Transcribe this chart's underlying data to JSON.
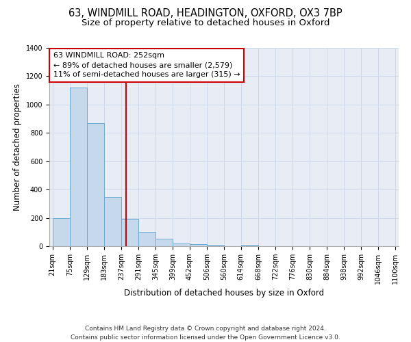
{
  "title_line1": "63, WINDMILL ROAD, HEADINGTON, OXFORD, OX3 7BP",
  "title_line2": "Size of property relative to detached houses in Oxford",
  "xlabel": "Distribution of detached houses by size in Oxford",
  "ylabel": "Number of detached properties",
  "bar_lefts": [
    21,
    75,
    129,
    183,
    237,
    291,
    345,
    399,
    452,
    506,
    560,
    614,
    668,
    722,
    776,
    830,
    884,
    938,
    992,
    1046
  ],
  "bar_rights": [
    75,
    129,
    183,
    237,
    291,
    345,
    399,
    452,
    506,
    560,
    614,
    668,
    722,
    776,
    830,
    884,
    938,
    992,
    1046,
    1100
  ],
  "bar_heights": [
    200,
    1120,
    870,
    350,
    195,
    100,
    55,
    20,
    15,
    10,
    0,
    10,
    0,
    0,
    0,
    0,
    0,
    0,
    0,
    0
  ],
  "bar_color": "#c5d8ec",
  "bar_edge_color": "#6aaad4",
  "red_line_x": 252,
  "annotation_text_line1": "63 WINDMILL ROAD: 252sqm",
  "annotation_text_line2": "← 89% of detached houses are smaller (2,579)",
  "annotation_text_line3": "11% of semi-detached houses are larger (315) →",
  "annotation_box_facecolor": "#ffffff",
  "annotation_box_edgecolor": "#cc0000",
  "ylim": [
    0,
    1400
  ],
  "yticks": [
    0,
    200,
    400,
    600,
    800,
    1000,
    1200,
    1400
  ],
  "all_tick_labels": [
    "21sqm",
    "75sqm",
    "129sqm",
    "183sqm",
    "237sqm",
    "291sqm",
    "345sqm",
    "399sqm",
    "452sqm",
    "506sqm",
    "560sqm",
    "614sqm",
    "668sqm",
    "722sqm",
    "776sqm",
    "830sqm",
    "884sqm",
    "938sqm",
    "992sqm",
    "1046sqm",
    "1100sqm"
  ],
  "all_tick_positions": [
    21,
    75,
    129,
    183,
    237,
    291,
    345,
    399,
    452,
    506,
    560,
    614,
    668,
    722,
    776,
    830,
    884,
    938,
    992,
    1046,
    1100
  ],
  "grid_color": "#cdd8ea",
  "background_color": "#e8edf5",
  "footer_line1": "Contains HM Land Registry data © Crown copyright and database right 2024.",
  "footer_line2": "Contains public sector information licensed under the Open Government Licence v3.0.",
  "title_fontsize": 10.5,
  "subtitle_fontsize": 9.5,
  "axis_label_fontsize": 8.5,
  "tick_fontsize": 7,
  "annotation_fontsize": 8,
  "footer_fontsize": 6.5
}
